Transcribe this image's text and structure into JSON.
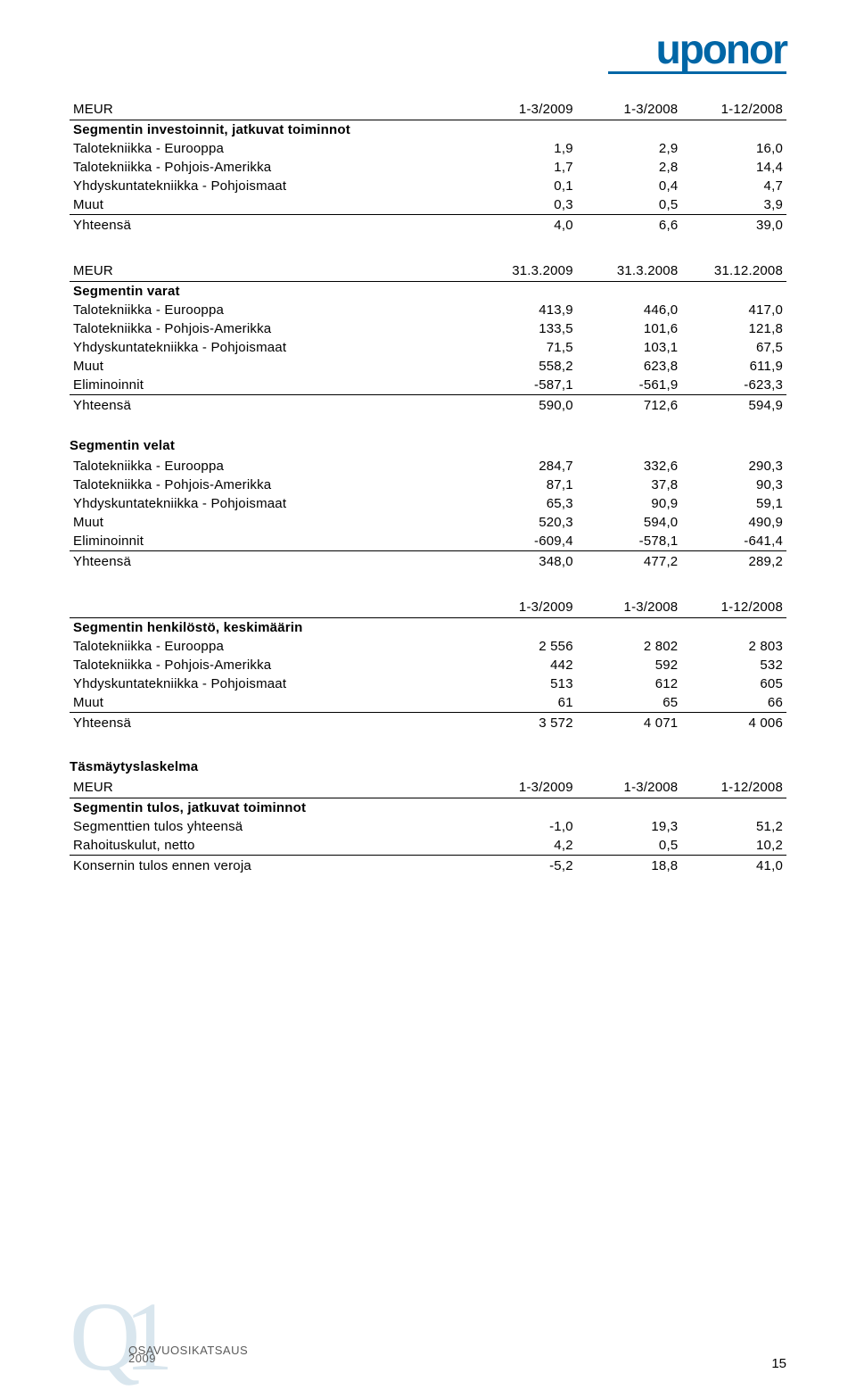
{
  "brand": {
    "name": "uponor"
  },
  "footer": {
    "text": "OSAVUOSIKATSAUS 2009",
    "page": "15"
  },
  "labels": {
    "meur": "MEUR",
    "te": "Talotekniikka - Eurooppa",
    "tpa": "Talotekniikka - Pohjois-Amerikka",
    "yp": "Yhdyskuntatekniikka - Pohjoismaat",
    "muut": "Muut",
    "yht": "Yhteensä",
    "elim": "Eliminoinnit"
  },
  "blocks": {
    "invest": {
      "header_title": "MEUR",
      "section_title": "Segmentin investoinnit, jatkuvat toiminnot",
      "cols": [
        "1-3/2009",
        "1-3/2008",
        "1-12/2008"
      ],
      "rows": [
        {
          "label": "Talotekniikka - Eurooppa",
          "v": [
            "1,9",
            "2,9",
            "16,0"
          ]
        },
        {
          "label": "Talotekniikka - Pohjois-Amerikka",
          "v": [
            "1,7",
            "2,8",
            "14,4"
          ]
        },
        {
          "label": "Yhdyskuntatekniikka - Pohjoismaat",
          "v": [
            "0,1",
            "0,4",
            "4,7"
          ]
        },
        {
          "label": "Muut",
          "v": [
            "0,3",
            "0,5",
            "3,9"
          ]
        }
      ],
      "total": {
        "label": "Yhteensä",
        "v": [
          "4,0",
          "6,6",
          "39,0"
        ]
      }
    },
    "varat": {
      "header_title": "MEUR",
      "section_title": "Segmentin varat",
      "cols": [
        "31.3.2009",
        "31.3.2008",
        "31.12.2008"
      ],
      "rows": [
        {
          "label": "Talotekniikka - Eurooppa",
          "v": [
            "413,9",
            "446,0",
            "417,0"
          ]
        },
        {
          "label": "Talotekniikka - Pohjois-Amerikka",
          "v": [
            "133,5",
            "101,6",
            "121,8"
          ]
        },
        {
          "label": "Yhdyskuntatekniikka - Pohjoismaat",
          "v": [
            "71,5",
            "103,1",
            "67,5"
          ]
        },
        {
          "label": "Muut",
          "v": [
            "558,2",
            "623,8",
            "611,9"
          ]
        },
        {
          "label": "Eliminoinnit",
          "v": [
            "-587,1",
            "-561,9",
            "-623,3"
          ]
        }
      ],
      "total": {
        "label": "Yhteensä",
        "v": [
          "590,0",
          "712,6",
          "594,9"
        ]
      }
    },
    "velat": {
      "section_title": "Segmentin velat",
      "rows": [
        {
          "label": "Talotekniikka - Eurooppa",
          "v": [
            "284,7",
            "332,6",
            "290,3"
          ]
        },
        {
          "label": "Talotekniikka - Pohjois-Amerikka",
          "v": [
            "87,1",
            "37,8",
            "90,3"
          ]
        },
        {
          "label": "Yhdyskuntatekniikka - Pohjoismaat",
          "v": [
            "65,3",
            "90,9",
            "59,1"
          ]
        },
        {
          "label": "Muut",
          "v": [
            "520,3",
            "594,0",
            "490,9"
          ]
        },
        {
          "label": "Eliminoinnit",
          "v": [
            "-609,4",
            "-578,1",
            "-641,4"
          ]
        }
      ],
      "total": {
        "label": "Yhteensä",
        "v": [
          "348,0",
          "477,2",
          "289,2"
        ]
      }
    },
    "henk": {
      "section_title": "Segmentin henkilöstö, keskimäärin",
      "cols": [
        "1-3/2009",
        "1-3/2008",
        "1-12/2008"
      ],
      "rows": [
        {
          "label": "Talotekniikka - Eurooppa",
          "v": [
            "2 556",
            "2 802",
            "2 803"
          ]
        },
        {
          "label": "Talotekniikka - Pohjois-Amerikka",
          "v": [
            "442",
            "592",
            "532"
          ]
        },
        {
          "label": "Yhdyskuntatekniikka - Pohjoismaat",
          "v": [
            "513",
            "612",
            "605"
          ]
        },
        {
          "label": "Muut",
          "v": [
            "61",
            "65",
            "66"
          ]
        }
      ],
      "total": {
        "label": "Yhteensä",
        "v": [
          "3 572",
          "4 071",
          "4 006"
        ]
      }
    },
    "tasm": {
      "title": "Täsmäytyslaskelma",
      "header_title": "MEUR",
      "section_title": "Segmentin tulos, jatkuvat toiminnot",
      "cols": [
        "1-3/2009",
        "1-3/2008",
        "1-12/2008"
      ],
      "rows": [
        {
          "label": "Segmenttien tulos yhteensä",
          "v": [
            "-1,0",
            "19,3",
            "51,2"
          ]
        },
        {
          "label": "Rahoituskulut, netto",
          "v": [
            "4,2",
            "0,5",
            "10,2"
          ]
        }
      ],
      "total": {
        "label": "Konsernin tulos ennen veroja",
        "v": [
          "-5,2",
          "18,8",
          "41,0"
        ]
      }
    }
  }
}
